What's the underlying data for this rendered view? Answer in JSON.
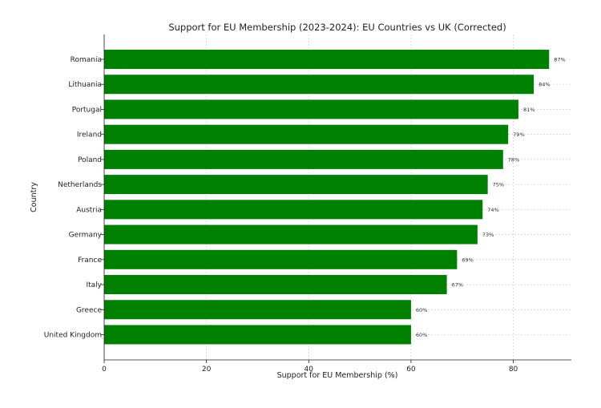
{
  "chart_data": {
    "type": "bar",
    "orientation": "horizontal",
    "title": "Support for EU Membership (2023-2024): EU Countries vs UK (Corrected)",
    "xlabel": "Support for EU Membership (%)",
    "ylabel": "Country",
    "xlim": [
      0,
      91.35
    ],
    "xticks": [
      0,
      20,
      40,
      60,
      80
    ],
    "grid": true,
    "bar_color": "#008000",
    "categories": [
      "Romania",
      "Lithuania",
      "Portugal",
      "Ireland",
      "Poland",
      "Netherlands",
      "Austria",
      "Germany",
      "France",
      "Italy",
      "Greece",
      "United Kingdom"
    ],
    "values": [
      87,
      84,
      81,
      79,
      78,
      75,
      74,
      73,
      69,
      67,
      60,
      60
    ],
    "data_labels": [
      "87%",
      "84%",
      "81%",
      "79%",
      "78%",
      "75%",
      "74%",
      "73%",
      "69%",
      "67%",
      "60%",
      "60%"
    ]
  }
}
